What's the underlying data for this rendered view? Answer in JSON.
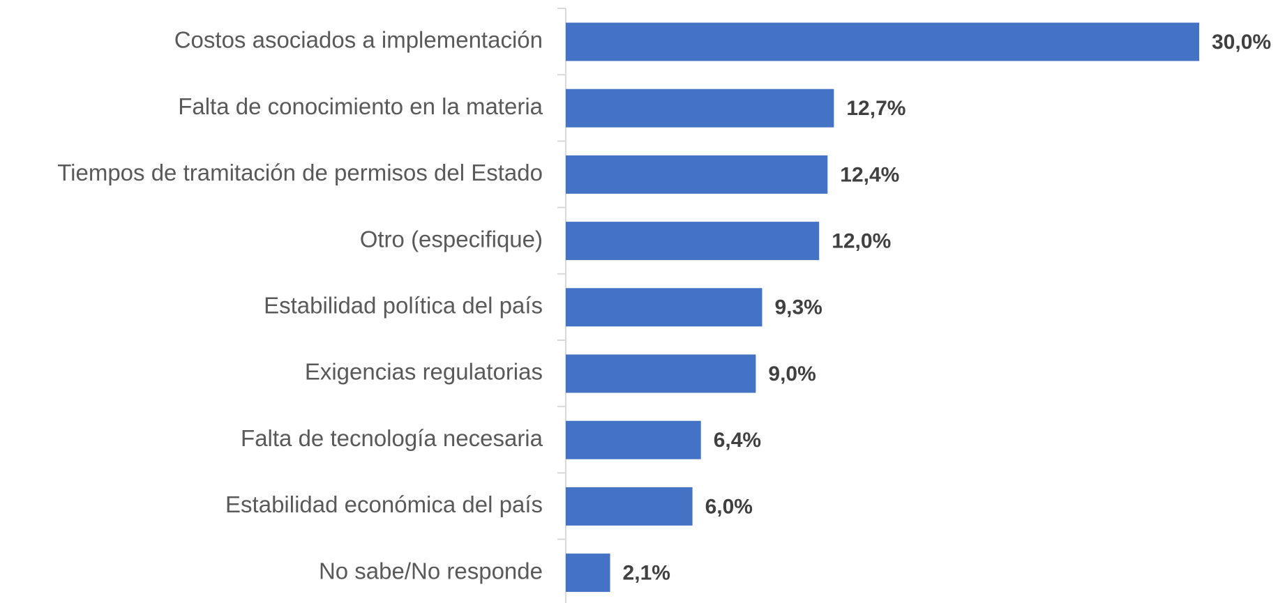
{
  "chart_data": {
    "type": "bar",
    "orientation": "horizontal",
    "categories": [
      "Costos asociados a implementación",
      "Falta de conocimiento en la materia",
      "Tiempos de tramitación de permisos del Estado",
      "Otro (especifique)",
      "Estabilidad política del país",
      "Exigencias regulatorias",
      "Falta de tecnología necesaria",
      "Estabilidad económica del país",
      "No sabe/No responde"
    ],
    "values": [
      30.0,
      12.7,
      12.4,
      12.0,
      9.3,
      9.0,
      6.4,
      6.0,
      2.1
    ],
    "value_labels": [
      "30,0%",
      "12,7%",
      "12,4%",
      "12,0%",
      "9,3%",
      "9,0%",
      "6,4%",
      "6,0%",
      "2,1%"
    ],
    "color": "#4472c4"
  }
}
